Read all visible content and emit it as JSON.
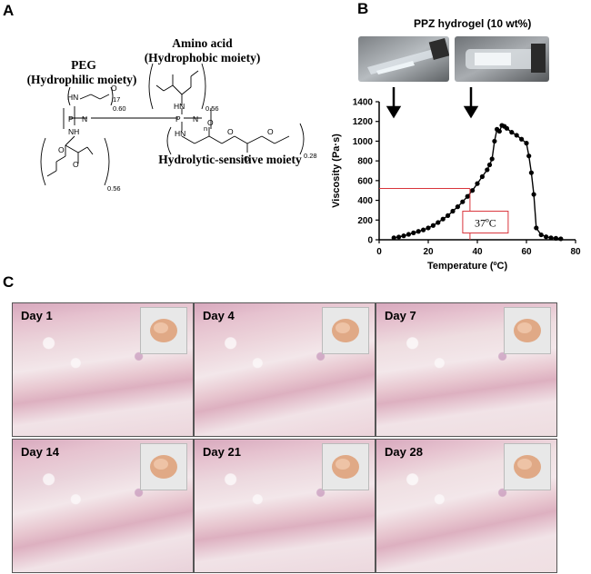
{
  "panels": {
    "a": "A",
    "b": "B",
    "c": "C"
  },
  "chem": {
    "peg_line1": "PEG",
    "peg_line2": "(Hydrophilic moiety)",
    "aa_line1": "Amino acid",
    "aa_line2": "(Hydrophobic moiety)",
    "hydro_label": "Hydrolytic-sensitive moiety",
    "sub_17": "17",
    "sub_060": "0.60",
    "sub_056a": "0.56",
    "sub_056b": "0.56",
    "sub_028": "0.28",
    "sub_n": "n"
  },
  "hydrogel": {
    "title": "PPZ hydrogel (10 wt%)"
  },
  "chart_data": {
    "type": "line",
    "xlabel": "Temperature (ºC)",
    "ylabel": "Viscosity (Pa·s)",
    "xlim": [
      0,
      80
    ],
    "ylim": [
      0,
      1400
    ],
    "xticks": [
      "0",
      "20",
      "40",
      "60",
      "80"
    ],
    "yticks": [
      "0",
      "200",
      "400",
      "600",
      "800",
      "1000",
      "1200",
      "1400"
    ],
    "annotation": "37ºC",
    "annotation_x": 37,
    "annotation_y": 520,
    "x": [
      6,
      8,
      10,
      12,
      14,
      16,
      18,
      20,
      22,
      24,
      26,
      28,
      30,
      32,
      34,
      36,
      38,
      40,
      42,
      44,
      45,
      46,
      47,
      48,
      49,
      50,
      51,
      52,
      54,
      56,
      58,
      60,
      61,
      62,
      63,
      64,
      66,
      68,
      70,
      72,
      74
    ],
    "y": [
      20,
      28,
      40,
      55,
      70,
      85,
      100,
      120,
      145,
      175,
      210,
      245,
      290,
      335,
      385,
      440,
      500,
      570,
      640,
      710,
      760,
      820,
      1000,
      1120,
      1100,
      1160,
      1150,
      1130,
      1090,
      1060,
      1020,
      980,
      850,
      680,
      460,
      120,
      50,
      30,
      20,
      15,
      10
    ]
  },
  "histology": {
    "days": [
      {
        "label": "Day 1",
        "tone": "#ecd6dc"
      },
      {
        "label": "Day 4",
        "tone": "#ecd3da"
      },
      {
        "label": "Day 7",
        "tone": "#eedde0"
      },
      {
        "label": "Day 14",
        "tone": "#e9d2da"
      },
      {
        "label": "Day 21",
        "tone": "#ecd8de"
      },
      {
        "label": "Day 28",
        "tone": "#efdfe2"
      }
    ]
  }
}
